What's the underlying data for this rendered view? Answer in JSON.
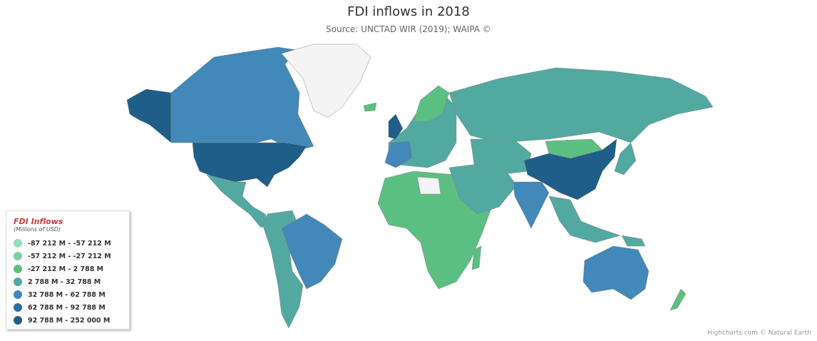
{
  "title": "FDI inflows in 2018",
  "subtitle": "Source: UNCTAD WIR (2019); WAIPA ©",
  "legend": {
    "title": "FDI Inflows",
    "subtitle": "(Millions of USD)",
    "items": [
      {
        "label": "-87 212 M - -57 212 M",
        "color": "#8fe0b8"
      },
      {
        "label": "-57 212 M - -27 212 M",
        "color": "#7dd0a0"
      },
      {
        "label": "-27 212 M - 2 788 M",
        "color": "#5cbf82"
      },
      {
        "label": "2 788 M - 32 788 M",
        "color": "#52a9a0"
      },
      {
        "label": "32 788 M - 62 788 M",
        "color": "#4288b9"
      },
      {
        "label": "62 788 M - 92 788 M",
        "color": "#2a6f9f"
      },
      {
        "label": "92 788 M - 252 000 M",
        "color": "#1f5e88"
      }
    ]
  },
  "no_data_color": "#f4f4f4",
  "credits": "Highcharts.com © Natural Earth"
}
